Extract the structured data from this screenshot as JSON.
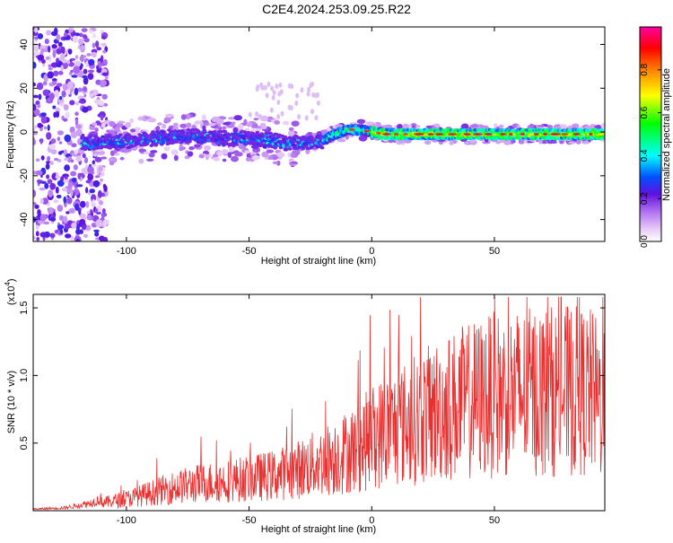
{
  "title": "C2E4.2024.253.09.25.R22",
  "chart_data": [
    {
      "type": "heatmap",
      "xlabel": "Height of straight line (km)",
      "ylabel": "Frequency (Hz)",
      "xlim": [
        -138,
        95
      ],
      "ylim": [
        -50,
        48
      ],
      "xticks": [
        -100,
        -50,
        0,
        50
      ],
      "yticks": [
        -40,
        -20,
        0,
        20,
        40
      ],
      "grid": false,
      "ridge": {
        "x": [
          -125,
          -115,
          -110,
          -100,
          -90,
          -80,
          -70,
          -60,
          -50,
          -40,
          -35,
          -30,
          -25,
          -20,
          -15,
          -10,
          -5,
          0,
          5,
          10,
          20,
          30,
          40,
          50,
          60,
          70,
          80,
          90,
          95
        ],
        "y": [
          -4,
          -5,
          -5,
          -4,
          -3,
          -2,
          -2,
          -3,
          -3,
          -4,
          -5,
          -5,
          -5,
          -4,
          -1,
          1,
          1,
          0,
          -1,
          -1,
          -1,
          -1,
          -1,
          -1,
          -1,
          -1,
          -1,
          -1,
          -1
        ]
      },
      "colorbar": {
        "label": "Normalized spectral amplitude",
        "ticks": [
          "0.0",
          "0.2",
          "0.4",
          "0.6",
          "0.8"
        ],
        "tick_values": [
          0,
          0.2,
          0.4,
          0.6,
          0.8
        ],
        "range": [
          0,
          1
        ]
      }
    },
    {
      "type": "line",
      "xlabel": "Height of straight line (km)",
      "ylabel": "SNR (10 * v/v)",
      "scale_note": "(x10",
      "scale_exp": "4",
      "scale_close": ")",
      "xlim": [
        -138,
        95
      ],
      "ylim": [
        0,
        1.6
      ],
      "xticks": [
        -100,
        -50,
        0,
        50
      ],
      "yticks": [
        0.5,
        1.0,
        1.5
      ],
      "ytick_labels": [
        "0.5",
        "1.0",
        "1.5"
      ],
      "line_color": "#e83030",
      "grid": false,
      "envelope": {
        "x": [
          -138,
          -125,
          -115,
          -110,
          -100,
          -90,
          -80,
          -70,
          -60,
          -50,
          -40,
          -30,
          -20,
          -15,
          -10,
          -5,
          0,
          10,
          20,
          30,
          40,
          50,
          60,
          70,
          80,
          90,
          95
        ],
        "y": [
          0.01,
          0.02,
          0.05,
          0.08,
          0.12,
          0.18,
          0.24,
          0.28,
          0.3,
          0.33,
          0.36,
          0.42,
          0.5,
          0.55,
          0.6,
          0.65,
          0.75,
          0.85,
          0.95,
          1.05,
          1.12,
          1.18,
          1.2,
          1.22,
          1.22,
          1.2,
          1.05
        ]
      }
    }
  ]
}
